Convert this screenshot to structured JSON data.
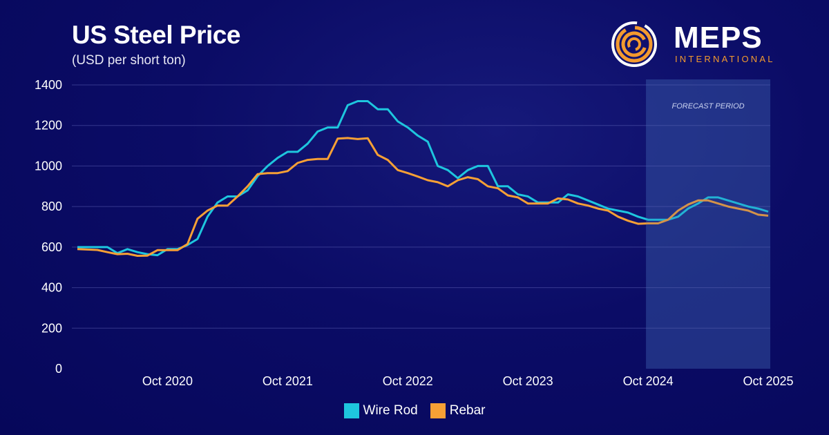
{
  "header": {
    "title": "US Steel Price",
    "subtitle": "(USD per short ton)"
  },
  "logo": {
    "word": "MEPS",
    "sub": "INTERNATIONAL",
    "accent": "#f39a2e"
  },
  "chart_data": {
    "type": "line",
    "title": "US Steel Price",
    "subtitle": "(USD per short ton)",
    "x_start": "2020-01",
    "x_end": "2025-10",
    "frequency": "monthly",
    "x_ticks": [
      {
        "label": "Oct 2020",
        "date": "2020-10"
      },
      {
        "label": "Oct 2021",
        "date": "2021-10"
      },
      {
        "label": "Oct 2022",
        "date": "2022-10"
      },
      {
        "label": "Oct 2023",
        "date": "2023-10"
      },
      {
        "label": "Oct 2024",
        "date": "2024-10"
      },
      {
        "label": "Oct 2025",
        "date": "2025-10"
      }
    ],
    "y_ticks": [
      0,
      200,
      400,
      600,
      800,
      1000,
      1200,
      1400
    ],
    "ylim": [
      0,
      1400
    ],
    "grid": true,
    "legend": "bottom",
    "forecast": {
      "label": "FORECAST PERIOD",
      "start": "2024-10",
      "end": "2025-10"
    },
    "series": [
      {
        "name": "Wire Rod",
        "color": "#1ec6de",
        "values": [
          600,
          600,
          600,
          600,
          570,
          590,
          575,
          565,
          560,
          590,
          590,
          610,
          640,
          750,
          820,
          850,
          850,
          880,
          950,
          1000,
          1040,
          1070,
          1070,
          1110,
          1170,
          1190,
          1190,
          1300,
          1320,
          1320,
          1280,
          1280,
          1220,
          1190,
          1150,
          1120,
          1000,
          980,
          940,
          980,
          1000,
          1000,
          900,
          900,
          860,
          850,
          820,
          820,
          820,
          860,
          850,
          830,
          810,
          790,
          780,
          770,
          750,
          735,
          735,
          735,
          750,
          790,
          815,
          845,
          845,
          830,
          815,
          800,
          790,
          775
        ]
      },
      {
        "name": "Rebar",
        "color": "#f7a035",
        "values": [
          590,
          588,
          586,
          575,
          565,
          567,
          557,
          558,
          585,
          585,
          585,
          615,
          740,
          780,
          805,
          805,
          850,
          900,
          960,
          965,
          965,
          975,
          1015,
          1030,
          1035,
          1035,
          1135,
          1138,
          1133,
          1137,
          1055,
          1030,
          980,
          965,
          948,
          930,
          920,
          900,
          930,
          945,
          935,
          900,
          890,
          855,
          845,
          815,
          815,
          815,
          840,
          835,
          815,
          805,
          790,
          780,
          750,
          730,
          715,
          717,
          717,
          735,
          780,
          810,
          830,
          830,
          815,
          800,
          790,
          780,
          760,
          755
        ]
      }
    ]
  }
}
